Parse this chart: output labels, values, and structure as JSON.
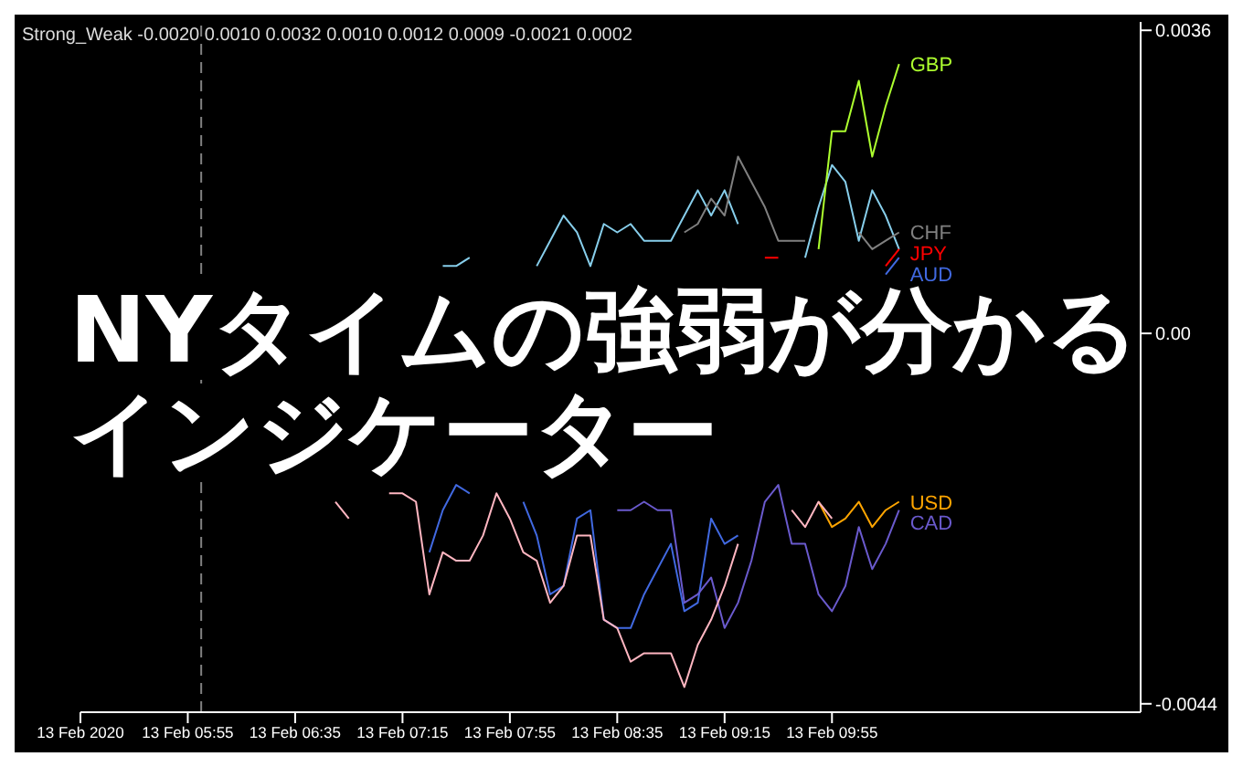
{
  "chart_data": {
    "type": "line",
    "title": "Strong_Weak -0.0020 0.0010 0.0032 0.0010 0.0012 0.0009 -0.0021 0.0002",
    "annotations": [
      "NYタイムの強弱が分かる",
      "インジケーター"
    ],
    "x": [
      "2020-02-13T06:50",
      "2020-02-13T06:55",
      "2020-02-13T07:00",
      "2020-02-13T07:05",
      "2020-02-13T07:10",
      "2020-02-13T07:15",
      "2020-02-13T07:20",
      "2020-02-13T07:25",
      "2020-02-13T07:30",
      "2020-02-13T07:35",
      "2020-02-13T07:40",
      "2020-02-13T07:45",
      "2020-02-13T07:50",
      "2020-02-13T07:55",
      "2020-02-13T08:00",
      "2020-02-13T08:05",
      "2020-02-13T08:10",
      "2020-02-13T08:15",
      "2020-02-13T08:20",
      "2020-02-13T08:25",
      "2020-02-13T08:30",
      "2020-02-13T08:35",
      "2020-02-13T08:40",
      "2020-02-13T08:45",
      "2020-02-13T08:50",
      "2020-02-13T08:55",
      "2020-02-13T09:00",
      "2020-02-13T09:05",
      "2020-02-13T09:10",
      "2020-02-13T09:15",
      "2020-02-13T09:20",
      "2020-02-13T09:25",
      "2020-02-13T09:30",
      "2020-02-13T09:35",
      "2020-02-13T09:40",
      "2020-02-13T09:45",
      "2020-02-13T09:50",
      "2020-02-13T09:55",
      "2020-02-13T10:00",
      "2020-02-13T10:05",
      "2020-02-13T10:10",
      "2020-02-13T10:15",
      "2020-02-13T10:20"
    ],
    "series": [
      {
        "name": "USD",
        "color": "#ffa500",
        "values": [
          null,
          null,
          null,
          null,
          null,
          null,
          null,
          null,
          null,
          null,
          null,
          null,
          null,
          null,
          null,
          null,
          null,
          null,
          null,
          null,
          null,
          null,
          null,
          null,
          null,
          null,
          null,
          null,
          null,
          null,
          null,
          null,
          null,
          null,
          null,
          null,
          -0.002,
          -0.0023,
          -0.0022,
          -0.002,
          -0.0023,
          -0.0021,
          -0.002
        ]
      },
      {
        "color": "#87ceeb",
        "values": [
          null,
          null,
          null,
          null,
          null,
          null,
          null,
          null,
          0.0008,
          0.0008,
          0.0009,
          null,
          null,
          null,
          null,
          0.0008,
          0.0011,
          0.0014,
          0.0012,
          0.0008,
          0.0013,
          0.0012,
          0.0013,
          0.0011,
          0.0011,
          0.0011,
          0.0014,
          0.0017,
          0.0014,
          0.0017,
          0.0013,
          null,
          null,
          null,
          null,
          0.0009,
          0.0015,
          0.002,
          0.0018,
          0.0011,
          0.0017,
          0.0014,
          0.001
        ]
      },
      {
        "name": "GBP",
        "color": "#adff2f",
        "values": [
          null,
          null,
          null,
          null,
          null,
          null,
          null,
          null,
          null,
          null,
          null,
          null,
          null,
          null,
          null,
          null,
          null,
          null,
          null,
          null,
          null,
          null,
          null,
          null,
          null,
          null,
          null,
          null,
          null,
          null,
          null,
          null,
          null,
          null,
          null,
          null,
          0.001,
          0.0024,
          0.0024,
          0.003,
          0.0021,
          0.0027,
          0.0032
        ]
      },
      {
        "name": "JPY",
        "color": "#ff0000",
        "values": [
          null,
          null,
          null,
          null,
          null,
          null,
          null,
          null,
          null,
          null,
          null,
          null,
          null,
          null,
          null,
          null,
          null,
          null,
          null,
          null,
          null,
          null,
          null,
          null,
          null,
          null,
          null,
          null,
          null,
          null,
          null,
          null,
          0.0009,
          0.0009,
          null,
          null,
          null,
          null,
          null,
          null,
          null,
          0.0008,
          0.001
        ]
      },
      {
        "name": "CHF",
        "color": "#808080",
        "values": [
          null,
          null,
          null,
          null,
          null,
          null,
          null,
          null,
          null,
          null,
          null,
          null,
          null,
          null,
          null,
          null,
          null,
          null,
          null,
          null,
          null,
          null,
          null,
          null,
          null,
          null,
          0.0012,
          0.0013,
          0.0016,
          0.0014,
          0.0021,
          0.0018,
          0.0015,
          0.0011,
          0.0011,
          0.0011,
          null,
          null,
          null,
          0.0012,
          0.001,
          0.0011,
          0.0012
        ]
      },
      {
        "name": "AUD",
        "color": "#4169e1",
        "values": [
          null,
          null,
          null,
          null,
          null,
          null,
          null,
          -0.0026,
          -0.0021,
          -0.0018,
          -0.0019,
          null,
          null,
          null,
          -0.002,
          -0.0024,
          -0.0031,
          -0.003,
          -0.0022,
          -0.0021,
          -0.0034,
          -0.0035,
          -0.0035,
          -0.0031,
          -0.0028,
          -0.0025,
          -0.0033,
          -0.0032,
          -0.0022,
          -0.0025,
          -0.0024,
          null,
          null,
          null,
          null,
          null,
          null,
          null,
          null,
          null,
          null,
          0.0007,
          0.0009
        ]
      },
      {
        "name": "CAD",
        "color": "#6a5acd",
        "values": [
          null,
          null,
          null,
          null,
          null,
          null,
          null,
          null,
          null,
          null,
          null,
          null,
          null,
          null,
          null,
          null,
          null,
          null,
          null,
          null,
          null,
          -0.0021,
          -0.0021,
          -0.002,
          -0.0021,
          -0.0021,
          -0.0032,
          -0.0031,
          -0.0029,
          -0.0035,
          -0.0032,
          -0.0027,
          -0.002,
          -0.0018,
          -0.0025,
          -0.0025,
          -0.0031,
          -0.0033,
          -0.003,
          -0.0023,
          -0.0028,
          -0.0025,
          -0.0021
        ]
      },
      {
        "color": "#ffb6c1",
        "values": [
          -0.002,
          -0.0022,
          null,
          null,
          -0.0019,
          -0.0019,
          -0.002,
          -0.0031,
          -0.0026,
          -0.0027,
          -0.0027,
          -0.0024,
          -0.0019,
          -0.0022,
          -0.0026,
          -0.0027,
          -0.0032,
          -0.003,
          -0.0024,
          -0.0024,
          -0.0034,
          -0.0035,
          -0.0039,
          -0.0038,
          -0.0038,
          -0.0038,
          -0.0042,
          -0.0037,
          -0.0034,
          -0.003,
          -0.0025,
          null,
          null,
          null,
          -0.0021,
          -0.0023,
          -0.002,
          -0.0022,
          null,
          null,
          null,
          null,
          null
        ]
      }
    ],
    "xlim": [
      "2020-02-13T05:15",
      "2020-02-13T11:50"
    ],
    "xticks": [
      {
        "value": "2020-02-13T05:15",
        "label": "13 Feb 2020"
      },
      {
        "value": "2020-02-13T05:55",
        "label": "13 Feb 05:55"
      },
      {
        "value": "2020-02-13T06:35",
        "label": "13 Feb 06:35"
      },
      {
        "value": "2020-02-13T07:15",
        "label": "13 Feb 07:15"
      },
      {
        "value": "2020-02-13T07:55",
        "label": "13 Feb 07:55"
      },
      {
        "value": "2020-02-13T08:35",
        "label": "13 Feb 08:35"
      },
      {
        "value": "2020-02-13T09:15",
        "label": "13 Feb 09:15"
      },
      {
        "value": "2020-02-13T09:55",
        "label": "13 Feb 09:55"
      }
    ],
    "ylim": [
      -0.0045,
      0.0037
    ],
    "yticks": [
      {
        "value": 0.0036,
        "label": "0.0036"
      },
      {
        "value": 0,
        "label": "0.00"
      },
      {
        "value": -0.0044,
        "label": "-0.0044"
      }
    ],
    "ref_lines": [
      {
        "axis": "x",
        "value": "2020-02-13T06:00",
        "color": "#808080",
        "line_style": "dashed"
      }
    ],
    "legend": false,
    "grid": false,
    "marker": "none",
    "line_style": "solid"
  }
}
